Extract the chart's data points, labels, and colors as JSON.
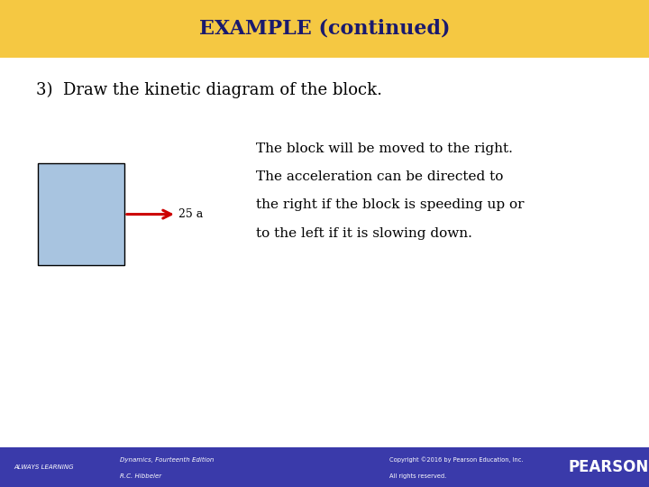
{
  "title": "EXAMPLE (continued)",
  "title_bg_color": "#F5C842",
  "title_text_color": "#1a1a6e",
  "slide_bg_color": "#ffffff",
  "footer_bg_color": "#3a3aaa",
  "footer_text_color": "#ffffff",
  "step_label": "3)  Draw the kinetic diagram of the block.",
  "step_label_color": "#000000",
  "block_fill_color": "#a8c4e0",
  "block_edge_color": "#000000",
  "arrow_color": "#cc0000",
  "arrow_label": "25 a",
  "arrow_label_color": "#000000",
  "description_lines": [
    "The block will be moved to the right.",
    "The acceleration can be directed to",
    "the right if the block is speeding up or",
    "to the left if it is slowing down."
  ],
  "description_color": "#000000",
  "footer_left_small": "ALWAYS LEARNING",
  "footer_center_line1": "Dynamics, Fourteenth Edition",
  "footer_center_line2": "R.C. Hibbeler",
  "footer_right_line1": "Copyright ©2016 by Pearson Education, Inc.",
  "footer_right_line2": "All rights reserved.",
  "footer_pearson": "PEARSON"
}
